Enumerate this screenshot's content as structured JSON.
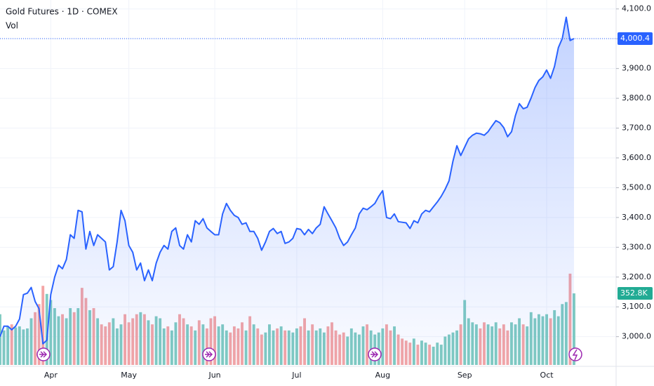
{
  "chart_data": {
    "type": "line",
    "title": "Gold Futures · 1D · COMEX",
    "categories": [
      null,
      null,
      null,
      null,
      null,
      null,
      null,
      null,
      null,
      null,
      null,
      null,
      null,
      "Apr",
      null,
      null,
      null,
      null,
      null,
      null,
      null,
      null,
      null,
      null,
      null,
      null,
      null,
      null,
      null,
      null,
      null,
      null,
      null,
      "May",
      null,
      null,
      null,
      null,
      null,
      null,
      null,
      null,
      null,
      null,
      null,
      null,
      null,
      null,
      null,
      null,
      null,
      null,
      null,
      null,
      null,
      "Jun",
      null,
      null,
      null,
      null,
      null,
      null,
      null,
      null,
      null,
      null,
      null,
      null,
      null,
      null,
      null,
      null,
      null,
      null,
      null,
      null,
      "Jul",
      null,
      null,
      null,
      null,
      null,
      null,
      null,
      null,
      null,
      null,
      null,
      null,
      null,
      null,
      null,
      null,
      null,
      null,
      null,
      null,
      null,
      "Aug",
      null,
      null,
      null,
      null,
      null,
      null,
      null,
      null,
      null,
      null,
      null,
      null,
      null,
      null,
      null,
      null,
      null,
      null,
      null,
      null,
      "Sep",
      null,
      null,
      null,
      null,
      null,
      null,
      null,
      null,
      null,
      null,
      null,
      null,
      null,
      null,
      null,
      null,
      null,
      null,
      null,
      null,
      "Oct",
      null,
      null,
      null,
      null,
      null,
      null,
      null
    ],
    "series": [
      {
        "name": "Gold Futures · 1D · COMEX",
        "color": "#2962ff",
        "values": [
          3000,
          3035,
          3035,
          3023,
          3035,
          3059,
          3141,
          3146,
          3165,
          3118,
          3094,
          2976,
          2988,
          3141,
          3200,
          3240,
          3228,
          3259,
          3342,
          3330,
          3424,
          3419,
          3294,
          3353,
          3306,
          3342,
          3330,
          3318,
          3224,
          3235,
          3318,
          3424,
          3389,
          3306,
          3283,
          3224,
          3247,
          3188,
          3224,
          3188,
          3247,
          3283,
          3306,
          3294,
          3353,
          3365,
          3306,
          3294,
          3342,
          3318,
          3389,
          3377,
          3396,
          3365,
          3353,
          3342,
          3342,
          3412,
          3447,
          3424,
          3407,
          3400,
          3377,
          3382,
          3353,
          3353,
          3330,
          3290,
          3318,
          3353,
          3363,
          3346,
          3353,
          3313,
          3318,
          3330,
          3363,
          3360,
          3342,
          3360,
          3346,
          3365,
          3377,
          3436,
          3412,
          3389,
          3365,
          3330,
          3306,
          3318,
          3342,
          3365,
          3412,
          3431,
          3426,
          3436,
          3447,
          3471,
          3490,
          3400,
          3396,
          3412,
          3386,
          3384,
          3382,
          3363,
          3389,
          3382,
          3412,
          3424,
          3419,
          3436,
          3452,
          3471,
          3495,
          3523,
          3589,
          3641,
          3608,
          3636,
          3664,
          3676,
          3683,
          3681,
          3676,
          3688,
          3707,
          3725,
          3718,
          3702,
          3671,
          3688,
          3742,
          3782,
          3765,
          3770,
          3801,
          3836,
          3860,
          3872,
          3895,
          3867,
          3907,
          3970,
          4001,
          4072,
          3994,
          4000.4
        ],
        "value_labels": [
          null,
          null,
          null,
          null,
          null,
          null,
          null,
          null,
          null,
          null,
          null,
          null,
          null,
          null,
          null,
          null,
          null,
          null,
          null,
          null,
          null,
          null,
          null,
          null,
          null,
          null,
          null,
          null,
          null,
          null,
          null,
          null,
          null,
          null,
          null,
          null,
          null,
          null,
          null,
          null,
          null,
          null,
          null,
          null,
          null,
          null,
          null,
          null,
          null,
          null,
          null,
          null,
          null,
          null,
          null,
          null,
          null,
          null,
          null,
          null,
          null,
          null,
          null,
          null,
          null,
          null,
          null,
          null,
          null,
          null,
          null,
          null,
          null,
          null,
          null,
          null,
          null,
          null,
          null,
          null,
          null,
          null,
          null,
          null,
          null,
          null,
          null,
          null,
          null,
          null,
          null,
          null,
          null,
          null,
          null,
          null,
          null,
          null,
          null,
          null,
          null,
          null,
          null,
          null,
          null,
          null,
          null,
          null,
          null,
          null,
          null,
          null,
          null,
          null,
          null,
          null,
          null,
          null,
          null,
          null,
          null,
          null,
          null,
          null,
          null,
          null,
          null,
          null,
          null,
          null,
          null,
          null,
          null,
          null,
          null,
          null,
          null,
          null,
          null,
          null,
          null,
          null,
          null,
          null,
          null,
          null,
          null,
          "4,000.4"
        ]
      },
      {
        "name": "Vol",
        "type": "bar",
        "axis": "y2",
        "up_color": "#80cbc1",
        "down_color": "#f4a5a5",
        "label_color": "#22ab94",
        "values": [
          250000,
          170000,
          190000,
          200000,
          185000,
          190000,
          175000,
          180000,
          230000,
          260000,
          300000,
          390000,
          350000,
          320000,
          280000,
          240000,
          250000,
          230000,
          280000,
          260000,
          280000,
          380000,
          330000,
          270000,
          280000,
          230000,
          200000,
          190000,
          210000,
          230000,
          180000,
          200000,
          250000,
          210000,
          230000,
          250000,
          260000,
          250000,
          220000,
          200000,
          240000,
          230000,
          180000,
          190000,
          170000,
          210000,
          250000,
          230000,
          200000,
          190000,
          170000,
          220000,
          200000,
          180000,
          230000,
          240000,
          190000,
          200000,
          170000,
          160000,
          190000,
          180000,
          210000,
          170000,
          240000,
          200000,
          180000,
          150000,
          160000,
          200000,
          170000,
          180000,
          190000,
          170000,
          170000,
          160000,
          180000,
          190000,
          230000,
          170000,
          200000,
          170000,
          180000,
          160000,
          190000,
          210000,
          170000,
          150000,
          160000,
          140000,
          180000,
          160000,
          150000,
          190000,
          200000,
          170000,
          150000,
          160000,
          180000,
          200000,
          170000,
          190000,
          150000,
          130000,
          120000,
          110000,
          130000,
          100000,
          120000,
          110000,
          100000,
          90000,
          110000,
          100000,
          140000,
          150000,
          160000,
          170000,
          200000,
          320000,
          230000,
          210000,
          200000,
          180000,
          210000,
          200000,
          190000,
          210000,
          180000,
          200000,
          170000,
          210000,
          200000,
          230000,
          200000,
          190000,
          260000,
          230000,
          250000,
          240000,
          250000,
          230000,
          270000,
          240000,
          300000,
          310000,
          450000,
          352800
        ],
        "value_labels": [
          null,
          null,
          null,
          null,
          null,
          null,
          null,
          null,
          null,
          null,
          null,
          null,
          null,
          null,
          null,
          null,
          null,
          null,
          null,
          null,
          null,
          null,
          null,
          null,
          null,
          null,
          null,
          null,
          null,
          null,
          null,
          null,
          null,
          null,
          null,
          null,
          null,
          null,
          null,
          null,
          null,
          null,
          null,
          null,
          null,
          null,
          null,
          null,
          null,
          null,
          null,
          null,
          null,
          null,
          null,
          null,
          null,
          null,
          null,
          null,
          null,
          null,
          null,
          null,
          null,
          null,
          null,
          null,
          null,
          null,
          null,
          null,
          null,
          null,
          null,
          null,
          null,
          null,
          null,
          null,
          null,
          null,
          null,
          null,
          null,
          null,
          null,
          null,
          null,
          null,
          null,
          null,
          null,
          null,
          null,
          null,
          null,
          null,
          null,
          null,
          null,
          null,
          null,
          null,
          null,
          null,
          null,
          null,
          null,
          null,
          null,
          null,
          null,
          null,
          null,
          null,
          null,
          null,
          null,
          null,
          null,
          null,
          null,
          null,
          null,
          null,
          null,
          null,
          null,
          null,
          null,
          null,
          null,
          null,
          null,
          null,
          null,
          null,
          null,
          null,
          null,
          null,
          null,
          null,
          null,
          null,
          null,
          "352.8K"
        ]
      }
    ],
    "ylim": [
      2905,
      4130
    ],
    "yticks": [
      {
        "value": 3000,
        "label": "3,000.0"
      },
      {
        "value": 3100,
        "label": "3,100.0"
      },
      {
        "value": 3200,
        "label": "3,200.0"
      },
      {
        "value": 3300,
        "label": "3,300.0"
      },
      {
        "value": 3400,
        "label": "3,400.0"
      },
      {
        "value": 3500,
        "label": "3,500.0"
      },
      {
        "value": 3600,
        "label": "3,600.0"
      },
      {
        "value": 3700,
        "label": "3,700.0"
      },
      {
        "value": 3800,
        "label": "3,800.0"
      },
      {
        "value": 3900,
        "label": "3,900.0"
      },
      {
        "value": 4000,
        "label": "4,000.0"
      },
      {
        "value": 4100,
        "label": "4,100.0"
      }
    ],
    "y2lim": [
      0,
      1798600
    ],
    "grid": true
  }
}
